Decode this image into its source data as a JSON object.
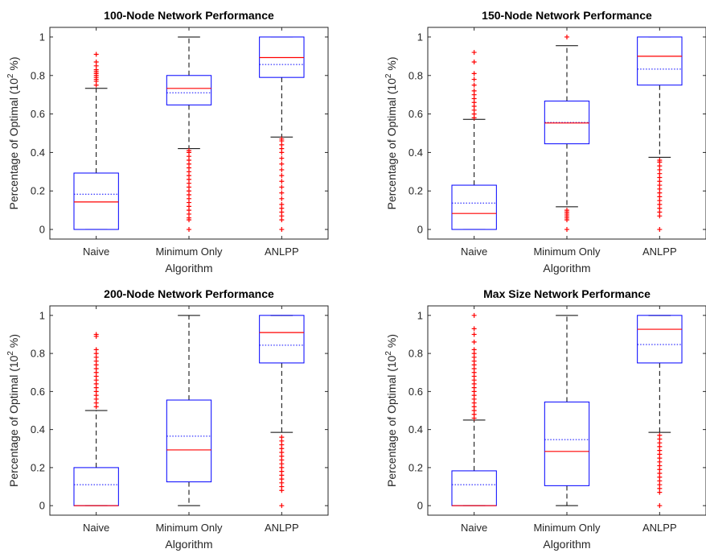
{
  "chart_data": [
    {
      "type": "boxplot",
      "title": "100-Node Network Performance",
      "xlabel": "Algorithm",
      "ylabel_main": "Percentage of Optimal (10",
      "ylabel_sup": "2",
      "ylabel_unit": " %)",
      "ylim": [
        -0.05,
        1.05
      ],
      "yticks": [
        "0",
        "0.2",
        "0.4",
        "0.6",
        "0.8",
        "1"
      ],
      "categories": [
        "Naive",
        "Minimum Only",
        "ANLPP"
      ],
      "boxes": [
        {
          "q1": 0.0,
          "median": 0.143,
          "q3": 0.293,
          "mean": 0.183,
          "whisker_low": 0.0,
          "whisker_high": 0.733,
          "outliers": [
            0.75,
            0.77,
            0.78,
            0.79,
            0.8,
            0.81,
            0.82,
            0.83,
            0.85,
            0.87,
            0.91
          ]
        },
        {
          "q1": 0.647,
          "median": 0.733,
          "q3": 0.8,
          "mean": 0.71,
          "whisker_low": 0.42,
          "whisker_high": 1.0,
          "outliers": [
            0.0,
            0.05,
            0.06,
            0.08,
            0.1,
            0.12,
            0.14,
            0.16,
            0.18,
            0.2,
            0.22,
            0.24,
            0.26,
            0.28,
            0.3,
            0.32,
            0.34,
            0.36,
            0.38,
            0.4,
            0.41
          ]
        },
        {
          "q1": 0.79,
          "median": 0.893,
          "q3": 1.0,
          "mean": 0.857,
          "whisker_low": 0.48,
          "whisker_high": 1.0,
          "outliers": [
            0.0,
            0.05,
            0.07,
            0.09,
            0.11,
            0.13,
            0.16,
            0.19,
            0.22,
            0.25,
            0.28,
            0.31,
            0.34,
            0.37,
            0.4,
            0.42,
            0.44,
            0.46,
            0.47
          ]
        }
      ]
    },
    {
      "type": "boxplot",
      "title": "150-Node Network Performance",
      "xlabel": "Algorithm",
      "ylabel_main": "Percentage of Optimal (10",
      "ylabel_sup": "2",
      "ylabel_unit": " %)",
      "ylim": [
        -0.05,
        1.05
      ],
      "yticks": [
        "0",
        "0.2",
        "0.4",
        "0.6",
        "0.8",
        "1"
      ],
      "categories": [
        "Naive",
        "Minimum Only",
        "ANLPP"
      ],
      "boxes": [
        {
          "q1": 0.0,
          "median": 0.083,
          "q3": 0.23,
          "mean": 0.137,
          "whisker_low": 0.0,
          "whisker_high": 0.572,
          "outliers": [
            0.58,
            0.6,
            0.62,
            0.64,
            0.66,
            0.68,
            0.7,
            0.72,
            0.75,
            0.78,
            0.81,
            0.87,
            0.92
          ]
        },
        {
          "q1": 0.445,
          "median": 0.553,
          "q3": 0.667,
          "mean": 0.556,
          "whisker_low": 0.118,
          "whisker_high": 0.955,
          "outliers": [
            0.0,
            0.05,
            0.06,
            0.07,
            0.08,
            0.09,
            0.1,
            1.0
          ]
        },
        {
          "q1": 0.75,
          "median": 0.9,
          "q3": 1.0,
          "mean": 0.833,
          "whisker_low": 0.375,
          "whisker_high": 1.0,
          "outliers": [
            0.0,
            0.07,
            0.09,
            0.11,
            0.13,
            0.15,
            0.17,
            0.19,
            0.21,
            0.23,
            0.25,
            0.27,
            0.29,
            0.31,
            0.33,
            0.35,
            0.36
          ]
        }
      ]
    },
    {
      "type": "boxplot",
      "title": "200-Node Network Performance",
      "xlabel": "Algorithm",
      "ylabel_main": "Percentage of Optimal (10",
      "ylabel_sup": "2",
      "ylabel_unit": " %)",
      "ylim": [
        -0.05,
        1.05
      ],
      "yticks": [
        "0",
        "0.2",
        "0.4",
        "0.6",
        "0.8",
        "1"
      ],
      "categories": [
        "Naive",
        "Minimum Only",
        "ANLPP"
      ],
      "boxes": [
        {
          "q1": 0.0,
          "median": 0.0,
          "q3": 0.2,
          "mean": 0.11,
          "whisker_low": 0.0,
          "whisker_high": 0.5,
          "outliers": [
            0.52,
            0.54,
            0.56,
            0.58,
            0.6,
            0.62,
            0.64,
            0.66,
            0.68,
            0.7,
            0.72,
            0.74,
            0.76,
            0.78,
            0.8,
            0.82,
            0.89,
            0.9
          ]
        },
        {
          "q1": 0.125,
          "median": 0.293,
          "q3": 0.555,
          "mean": 0.365,
          "whisker_low": 0.0,
          "whisker_high": 1.0,
          "outliers": []
        },
        {
          "q1": 0.75,
          "median": 0.91,
          "q3": 1.0,
          "mean": 0.843,
          "whisker_low": 0.385,
          "whisker_high": 1.0,
          "outliers": [
            0.0,
            0.08,
            0.1,
            0.12,
            0.14,
            0.16,
            0.18,
            0.2,
            0.22,
            0.24,
            0.26,
            0.28,
            0.3,
            0.32,
            0.34,
            0.36
          ]
        }
      ]
    },
    {
      "type": "boxplot",
      "title": "Max Size Network Performance",
      "xlabel": "Algorithm",
      "ylabel_main": "Percentage of Optimal (10",
      "ylabel_sup": "2",
      "ylabel_unit": " %)",
      "ylim": [
        -0.05,
        1.05
      ],
      "yticks": [
        "0",
        "0.2",
        "0.4",
        "0.6",
        "0.8",
        "1"
      ],
      "categories": [
        "Naive",
        "Minimum Only",
        "ANLPP"
      ],
      "boxes": [
        {
          "q1": 0.0,
          "median": 0.0,
          "q3": 0.183,
          "mean": 0.11,
          "whisker_low": 0.0,
          "whisker_high": 0.45,
          "outliers": [
            0.46,
            0.48,
            0.5,
            0.52,
            0.54,
            0.56,
            0.58,
            0.6,
            0.62,
            0.64,
            0.66,
            0.68,
            0.7,
            0.72,
            0.74,
            0.76,
            0.78,
            0.8,
            0.82,
            0.86,
            0.9,
            0.93,
            1.0
          ]
        },
        {
          "q1": 0.105,
          "median": 0.285,
          "q3": 0.545,
          "mean": 0.347,
          "whisker_low": 0.0,
          "whisker_high": 1.0,
          "outliers": []
        },
        {
          "q1": 0.75,
          "median": 0.927,
          "q3": 1.0,
          "mean": 0.847,
          "whisker_low": 0.385,
          "whisker_high": 1.0,
          "outliers": [
            0.0,
            0.07,
            0.09,
            0.11,
            0.13,
            0.15,
            0.17,
            0.19,
            0.21,
            0.23,
            0.25,
            0.27,
            0.29,
            0.31,
            0.33,
            0.35,
            0.37
          ]
        }
      ]
    }
  ],
  "colors": {
    "box": "#0000ff",
    "median": "#ff0000",
    "mean": "#0000ff",
    "whisker": "#000000",
    "outlier": "#ff0000",
    "axis": "#262626"
  }
}
